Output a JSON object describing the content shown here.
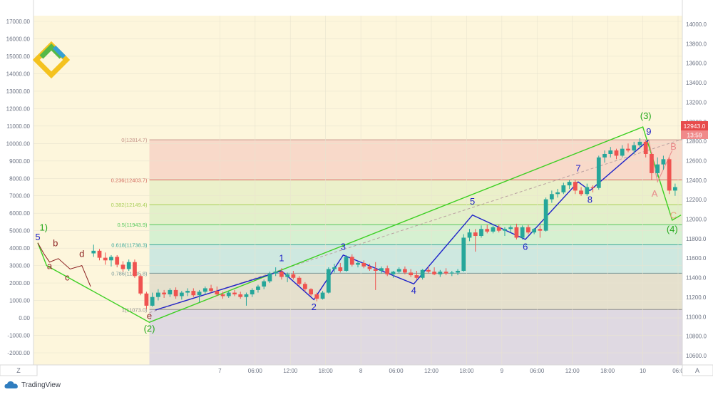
{
  "colors": {
    "background": "#fdf6dc",
    "grid": "#e9e4cf",
    "axis_text": "#6c7383",
    "bull": "#26a69a",
    "bear": "#ef5350",
    "wave_blue": "#1e22c9",
    "wave_green": "#3ccf22",
    "fib_line": "#c8b070",
    "price_tag": "#e74c4c"
  },
  "icons": {
    "watermark": "brand-logo-icon",
    "footer": "tradingview-cloud-icon"
  },
  "footer": {
    "brand": "TradingView"
  },
  "axis_buttons": {
    "left": "Z",
    "right": "A"
  },
  "price_tag": {
    "price": "12943.0",
    "timer": "13:59"
  },
  "chart_data": {
    "type": "candlestick",
    "left_axis": {
      "ticks": [
        17000,
        16000,
        15000,
        14000,
        13000,
        12000,
        11000,
        10000,
        9000,
        8000,
        7000,
        6000,
        5000,
        4000,
        3000,
        2000,
        1000,
        0,
        -1000,
        -2000
      ],
      "labels": [
        "17000.00",
        "16000.00",
        "15000.00",
        "14000.00",
        "13000.00",
        "12000.00",
        "11000.00",
        "10000.00",
        "9000.00",
        "8000.00",
        "7000.00",
        "6000.00",
        "5000.00",
        "4000.00",
        "3000.00",
        "2000.00",
        "1000.00",
        "0.00",
        "-1000.00",
        "-2000.00"
      ],
      "ylim": [
        -2600,
        17200
      ]
    },
    "right_axis": {
      "labels": [
        "14000.0",
        "13800.0",
        "13600.0",
        "13400.0",
        "13200.0",
        "13000.0",
        "12800.0",
        "12600.0",
        "12400.0",
        "12200.0",
        "12000.0",
        "11800.0",
        "11600.0",
        "11400.0",
        "11200.0",
        "11000.0",
        "10800.0",
        "10600.0"
      ],
      "ylim": [
        10480,
        14060
      ]
    },
    "x_axis": {
      "labels": [
        "7",
        "06:00",
        "12:00",
        "18:00",
        "8",
        "06:00",
        "12:00",
        "18:00",
        "9",
        "06:00",
        "12:00",
        "18:00",
        "10",
        "06:0"
      ],
      "hour_positions": [
        24,
        30,
        36,
        42,
        48,
        54,
        60,
        66,
        72,
        78,
        84,
        90,
        96,
        102
      ],
      "xlim": [
        -7,
        102
      ]
    },
    "fibonacci": [
      {
        "label": "0(12814.7)",
        "price": 12814.7,
        "color": "#c6968b",
        "fill": "#f7d3c6"
      },
      {
        "label": "0.236(12403.7)",
        "price": 12403.7,
        "color": "#d36a5e",
        "fill": "#e8efc7"
      },
      {
        "label": "0.382(12149.4)",
        "price": 12149.4,
        "color": "#a8cf59",
        "fill": "#ddefc5"
      },
      {
        "label": "0.5(11943.9)",
        "price": 11943.9,
        "color": "#56c85e",
        "fill": "#cfeecf"
      },
      {
        "label": "0.618(11738.3)",
        "price": 11738.3,
        "color": "#3aa79a",
        "fill": "#c6e5e1"
      },
      {
        "label": "0.786(11445.8)",
        "price": 11445.8,
        "color": "#7b9a9a",
        "fill": "#e0dcca"
      },
      {
        "label": "1(11073.0)",
        "price": 11073.0,
        "color": "#8d8d8d",
        "fill": "#d9d4e3"
      }
    ],
    "candles": [
      [
        2.5,
        3700,
        4200,
        3500,
        3850
      ],
      [
        3.5,
        3850,
        3950,
        3300,
        3450
      ],
      [
        4.5,
        3450,
        3750,
        3050,
        3300
      ],
      [
        5.5,
        3300,
        3600,
        2950,
        3500
      ],
      [
        6.5,
        3500,
        3600,
        2900,
        3050
      ],
      [
        7.5,
        3050,
        3250,
        2650,
        2800
      ],
      [
        8.5,
        2800,
        3350,
        2700,
        3200
      ],
      [
        9.5,
        3200,
        3350,
        2300,
        2400
      ],
      [
        10.5,
        2400,
        2500,
        1300,
        1400
      ],
      [
        11.5,
        1400,
        1500,
        500,
        700
      ],
      [
        12.5,
        700,
        1450,
        650,
        1200
      ],
      [
        13.5,
        1200,
        1650,
        1000,
        1450
      ],
      [
        14.5,
        1450,
        1600,
        1150,
        1350
      ],
      [
        15.5,
        1350,
        1700,
        1200,
        1600
      ],
      [
        16.5,
        1600,
        1750,
        1100,
        1250
      ],
      [
        17.5,
        1250,
        1550,
        1050,
        1450
      ],
      [
        18.5,
        1450,
        1700,
        1250,
        1550
      ],
      [
        19.5,
        1550,
        1700,
        1200,
        1300
      ],
      [
        20.5,
        1300,
        1600,
        900,
        1500
      ],
      [
        21.5,
        1500,
        1800,
        1350,
        1700
      ],
      [
        22.5,
        1700,
        1900,
        1450,
        1550
      ],
      [
        23.5,
        1550,
        1800,
        1250,
        1350
      ],
      [
        24.5,
        1350,
        1500,
        1100,
        1250
      ],
      [
        25.5,
        1250,
        1550,
        1150,
        1450
      ],
      [
        26.5,
        1450,
        1600,
        1250,
        1350
      ],
      [
        27.5,
        1350,
        1500,
        1100,
        1200
      ],
      [
        28.5,
        1200,
        1450,
        700,
        1350
      ],
      [
        29.5,
        1350,
        1700,
        1200,
        1600
      ],
      [
        30.5,
        1600,
        1900,
        1450,
        1800
      ],
      [
        31.5,
        1800,
        2200,
        1650,
        2100
      ],
      [
        32.5,
        2100,
        2650,
        2000,
        2550
      ],
      [
        33.5,
        2550,
        2900,
        2400,
        2650
      ],
      [
        34.5,
        2650,
        2850,
        2200,
        2350
      ],
      [
        35.5,
        2350,
        2600,
        2050,
        2500
      ],
      [
        36.5,
        2500,
        2700,
        2200,
        2300
      ],
      [
        37.5,
        2300,
        2400,
        1850,
        1950
      ],
      [
        38.5,
        1950,
        2050,
        1500,
        1650
      ],
      [
        39.5,
        1650,
        1700,
        1250,
        1350
      ],
      [
        40.5,
        1350,
        1450,
        950,
        1100
      ],
      [
        41.5,
        1100,
        1550,
        1050,
        1450
      ],
      [
        42.5,
        1450,
        2900,
        1400,
        2800
      ],
      [
        43.5,
        2800,
        3100,
        2600,
        2900
      ],
      [
        44.5,
        2900,
        3150,
        2600,
        2700
      ],
      [
        45.5,
        2700,
        3600,
        2650,
        3500
      ],
      [
        46.5,
        3500,
        3650,
        2950,
        3050
      ],
      [
        47.5,
        3050,
        3250,
        2900,
        3150
      ],
      [
        48.5,
        3150,
        3300,
        2850,
        2950
      ],
      [
        49.5,
        2950,
        3100,
        2700,
        2800
      ],
      [
        50.5,
        2800,
        3200,
        1600,
        2700
      ],
      [
        51.5,
        2700,
        2950,
        2550,
        2850
      ],
      [
        52.5,
        2850,
        3000,
        2400,
        2500
      ],
      [
        53.5,
        2500,
        2700,
        2300,
        2650
      ],
      [
        54.5,
        2650,
        2900,
        2550,
        2800
      ],
      [
        55.5,
        2800,
        2950,
        2500,
        2600
      ],
      [
        56.5,
        2600,
        2800,
        2350,
        2450
      ],
      [
        57.5,
        2450,
        2700,
        2200,
        2300
      ],
      [
        58.5,
        2300,
        2800,
        2200,
        2750
      ],
      [
        59.5,
        2750,
        2950,
        2550,
        2650
      ],
      [
        60.5,
        2650,
        2900,
        2450,
        2500
      ],
      [
        61.5,
        2500,
        2750,
        2350,
        2650
      ],
      [
        62.5,
        2650,
        2850,
        2450,
        2550
      ],
      [
        63.5,
        2550,
        2700,
        2400,
        2600
      ],
      [
        64.5,
        2600,
        2800,
        2450,
        2700
      ],
      [
        65.5,
        2700,
        4800,
        2650,
        4600
      ],
      [
        66.5,
        4600,
        5100,
        4400,
        4900
      ],
      [
        67.5,
        4900,
        5100,
        3800,
        4700
      ],
      [
        68.5,
        4700,
        5300,
        4600,
        5100
      ],
      [
        69.5,
        5100,
        5350,
        4850,
        4950
      ],
      [
        70.5,
        4950,
        5300,
        4850,
        5200
      ],
      [
        71.5,
        5200,
        5350,
        4900,
        5000
      ],
      [
        72.5,
        5000,
        5200,
        4700,
        5100
      ],
      [
        73.5,
        5100,
        5300,
        4900,
        5200
      ],
      [
        74.5,
        5200,
        5400,
        4500,
        4600
      ],
      [
        75.5,
        4600,
        5300,
        4500,
        5200
      ],
      [
        76.5,
        5200,
        5350,
        4800,
        4900
      ],
      [
        77.5,
        4900,
        5150,
        4800,
        5100
      ],
      [
        78.5,
        5100,
        5300,
        4600,
        5000
      ],
      [
        79.5,
        5000,
        6900,
        4950,
        6800
      ],
      [
        80.5,
        6800,
        7300,
        6600,
        7100
      ],
      [
        81.5,
        7100,
        7400,
        6900,
        7200
      ],
      [
        82.5,
        7200,
        7750,
        7100,
        7600
      ],
      [
        83.5,
        7600,
        7900,
        7400,
        7800
      ],
      [
        84.5,
        7800,
        7900,
        7100,
        7300
      ],
      [
        85.5,
        7300,
        7500,
        7000,
        7100
      ],
      [
        86.5,
        7100,
        7700,
        7000,
        7500
      ],
      [
        87.5,
        7500,
        7600,
        7200,
        7450
      ],
      [
        88.5,
        7450,
        9300,
        7350,
        9200
      ],
      [
        89.5,
        9200,
        9600,
        8900,
        9400
      ],
      [
        90.5,
        9400,
        9800,
        9200,
        9600
      ],
      [
        91.5,
        9600,
        9700,
        9100,
        9300
      ],
      [
        92.5,
        9300,
        9900,
        9200,
        9700
      ],
      [
        93.5,
        9700,
        10000,
        9500,
        9600
      ],
      [
        94.5,
        9600,
        10100,
        9400,
        9900
      ],
      [
        95.5,
        9900,
        10300,
        9700,
        10100
      ],
      [
        96.5,
        10100,
        10200,
        9200,
        9400
      ],
      [
        97.5,
        9400,
        9500,
        7900,
        8300
      ],
      [
        98.5,
        8300,
        9200,
        8100,
        8800
      ],
      [
        99.5,
        8800,
        9300,
        8500,
        9100
      ],
      [
        100.5,
        9100,
        9200,
        7100,
        7300
      ],
      [
        101.5,
        7300,
        7700,
        7000,
        7500
      ]
    ],
    "wave_blue_path": [
      [
        13,
        450
      ],
      [
        34.5,
        2700
      ],
      [
        40,
        1050
      ],
      [
        45,
        3600
      ],
      [
        57,
        1950
      ],
      [
        67,
        5900
      ],
      [
        76,
        4500
      ],
      [
        85,
        7800
      ],
      [
        87,
        7300
      ],
      [
        97,
        10200
      ]
    ],
    "wave_green_path": [
      [
        -7,
        4300
      ],
      [
        -5.5,
        3000
      ],
      [
        12,
        -250
      ],
      [
        96,
        10950
      ],
      [
        101,
        5600
      ],
      [
        102.5,
        5900
      ]
    ],
    "trend_dashed": [
      [
        12,
        300
      ],
      [
        105,
        10500
      ]
    ],
    "abc_top": [
      [
        -7,
        4300
      ],
      [
        -6,
        3700
      ],
      [
        -5,
        3200
      ],
      [
        -3.5,
        3400
      ],
      [
        -1.5,
        2800
      ],
      [
        0.5,
        3000
      ],
      [
        2,
        1800
      ]
    ],
    "correction_red": [
      [
        97,
        10200
      ],
      [
        98.5,
        7800
      ],
      [
        101,
        9600
      ]
    ],
    "labels": [
      {
        "text": "1",
        "x": 34.5,
        "y": 3250,
        "color": "#1e22c9"
      },
      {
        "text": "2",
        "x": 40,
        "y": 450,
        "color": "#1e22c9"
      },
      {
        "text": "3",
        "x": 45,
        "y": 3900,
        "color": "#1e22c9"
      },
      {
        "text": "4",
        "x": 57,
        "y": 1400,
        "color": "#1e22c9"
      },
      {
        "text": "5",
        "x": 67,
        "y": 6500,
        "color": "#1e22c9"
      },
      {
        "text": "6",
        "x": 76,
        "y": 3900,
        "color": "#1e22c9"
      },
      {
        "text": "7",
        "x": 85,
        "y": 8400,
        "color": "#1e22c9"
      },
      {
        "text": "8",
        "x": 87,
        "y": 6600,
        "color": "#1e22c9"
      },
      {
        "text": "9",
        "x": 97,
        "y": 10500,
        "color": "#1e22c9"
      },
      {
        "text": "(3)",
        "x": 96.5,
        "y": 11400,
        "color": "#25a81c"
      },
      {
        "text": "(4)",
        "x": 101,
        "y": 4900,
        "color": "#25a81c"
      },
      {
        "text": "(2)",
        "x": 12,
        "y": -800,
        "color": "#25a81c"
      },
      {
        "text": "1)",
        "x": -6,
        "y": 5000,
        "color": "#25a81c"
      },
      {
        "text": "5",
        "x": -7,
        "y": 4450,
        "color": "#1e22c9"
      },
      {
        "text": "b",
        "x": -4,
        "y": 4100,
        "color": "#8b1f1f"
      },
      {
        "text": "a",
        "x": -5,
        "y": 2800,
        "color": "#8b1f1f"
      },
      {
        "text": "d",
        "x": 0.5,
        "y": 3500,
        "color": "#8b1f1f"
      },
      {
        "text": "c",
        "x": -2,
        "y": 2150,
        "color": "#8b1f1f"
      },
      {
        "text": "e",
        "x": 12,
        "y": -50,
        "color": "#8b1f1f"
      },
      {
        "text": "A",
        "x": 98,
        "y": 6950,
        "color": "#e88a8a"
      },
      {
        "text": "B",
        "x": 101.2,
        "y": 9650,
        "color": "#e88a8a"
      },
      {
        "text": "C",
        "x": 101.2,
        "y": 5700,
        "color": "#e8a37a"
      }
    ]
  }
}
